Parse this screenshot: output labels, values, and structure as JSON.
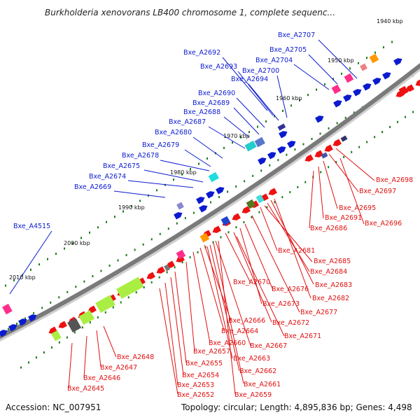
{
  "title": "Burkholderia xenovorans LB400 chromosome 1, complete sequenc...",
  "footer": {
    "accession": "Accession: NC_007951",
    "summary": "Topology: circular; Length: 4,895,836 bp; Genes: 4,498"
  },
  "colors": {
    "backbone": "#7a7a7a",
    "label_blue": "#0b1bd0",
    "label_red": "#e01010",
    "tick": "#1a7a1a",
    "forward_gene": "#0b1bd0",
    "reverse_gene": "#ee1111"
  },
  "scale_labels": [
    {
      "text": "1940 kbp"
    },
    {
      "text": "1950 kbp"
    },
    {
      "text": "1960 kbp"
    },
    {
      "text": "1970 kbp"
    },
    {
      "text": "1980 kbp"
    },
    {
      "text": "1990 kbp"
    },
    {
      "text": "2000 kbp"
    },
    {
      "text": "2010 kbp"
    }
  ],
  "blue_labels": [
    "Bxe_A2707",
    "Bxe_A2705",
    "Bxe_A2704",
    "Bxe_A2692",
    "Bxe_A2693",
    "Bxe_A2700",
    "Bxe_A2694",
    "Bxe_A2690",
    "Bxe_A2689",
    "Bxe_A2688",
    "Bxe_A2687",
    "Bxe_A2680",
    "Bxe_A2679",
    "Bxe_A2678",
    "Bxe_A2675",
    "Bxe_A2674",
    "Bxe_A2669",
    "Bxe_A4515"
  ],
  "red_labels": [
    "Bxe_A2698",
    "Bxe_A2697",
    "Bxe_A2695",
    "Bxe_A2691",
    "Bxe_A2696",
    "Bxe_A2686",
    "Bxe_A2681",
    "Bxe_A2685",
    "Bxe_A2684",
    "Bxe_A2683",
    "Bxe_A2670",
    "Bxe_A2676",
    "Bxe_A2682",
    "Bxe_A2673",
    "Bxe_A2677",
    "Bxe_A2672",
    "Bxe_A2666",
    "Bxe_A2671",
    "Bxe_A2664",
    "Bxe_A2660",
    "Bxe_A2667",
    "Bxe_A2657",
    "Bxe_A2663",
    "Bxe_A2648",
    "Bxe_A2655",
    "Bxe_A2662",
    "Bxe_A2647",
    "Bxe_A2654",
    "Bxe_A2646",
    "Bxe_A2653",
    "Bxe_A2661",
    "Bxe_A2645",
    "Bxe_A2652",
    "Bxe_A2659"
  ]
}
